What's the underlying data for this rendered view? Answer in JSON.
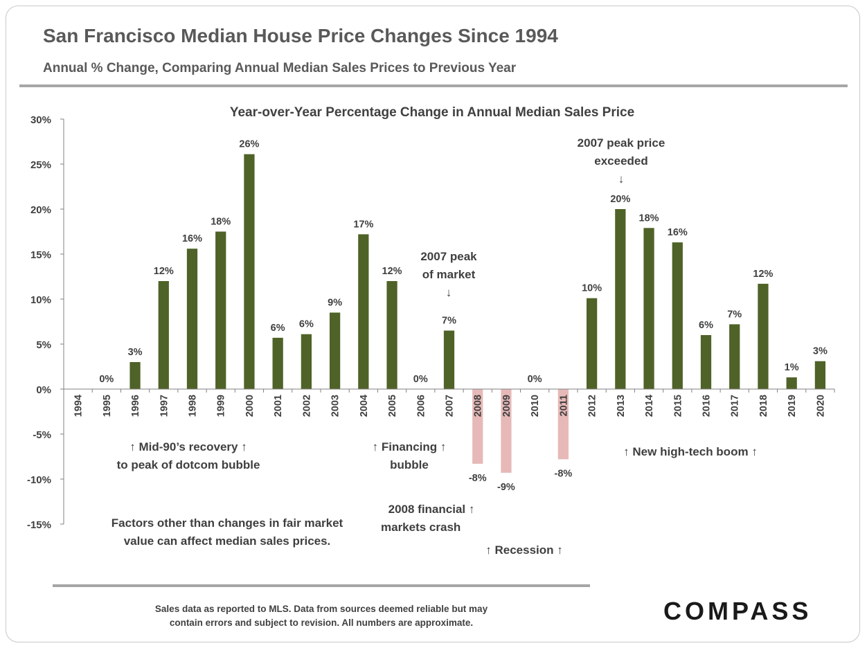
{
  "header": {
    "title": "San Francisco Median House Price Changes Since 1994",
    "subtitle": "Annual % Change, Comparing Annual Median Sales Prices to Previous Year"
  },
  "chart_data": {
    "type": "bar",
    "title": "Year-over-Year Percentage Change in Annual Median Sales Price",
    "xlabel": "",
    "ylabel": "",
    "ylim": [
      -15,
      30
    ],
    "y_ticks": [
      "30%",
      "25%",
      "20%",
      "15%",
      "10%",
      "5%",
      "0%",
      "-5%",
      "-10%",
      "-15%"
    ],
    "grid": false,
    "categories": [
      "1994",
      "1995",
      "1996",
      "1997",
      "1998",
      "1999",
      "2000",
      "2001",
      "2002",
      "2003",
      "2004",
      "2005",
      "2006",
      "2007",
      "2008",
      "2009",
      "2010",
      "2011",
      "2012",
      "2013",
      "2014",
      "2015",
      "2016",
      "2017",
      "2018",
      "2019",
      "2020"
    ],
    "values": [
      null,
      0,
      3.0,
      12.0,
      15.6,
      17.5,
      26.1,
      5.7,
      6.1,
      8.5,
      17.2,
      12.0,
      0,
      6.5,
      -8.3,
      -9.3,
      0,
      -7.8,
      10.1,
      20.0,
      17.9,
      16.3,
      6.0,
      7.2,
      11.7,
      1.3,
      3.1
    ],
    "data_labels": [
      "",
      "0%",
      "3%",
      "12%",
      "16%",
      "18%",
      "26%",
      "6%",
      "6%",
      "9%",
      "17%",
      "12%",
      "0%",
      "7%",
      "-8%",
      "-9%",
      "0%",
      "-8%",
      "10%",
      "20%",
      "18%",
      "16%",
      "6%",
      "7%",
      "12%",
      "1%",
      "3%"
    ],
    "colors": {
      "positive": "#4f6228",
      "negative": "#e6b9b8"
    }
  },
  "annotations": {
    "peak_market_line1": "2007 peak",
    "peak_market_line2": "of market",
    "peak_exceeded_line1": "2007 peak price",
    "peak_exceeded_line2": "exceeded",
    "down_arrow": "↓",
    "up_arrow": "↑",
    "mid90_line1": "Mid-90’s recovery",
    "mid90_line2": "to peak of dotcom bubble",
    "financing_line1": "Financing",
    "financing_line2": "bubble",
    "crash_line1": "2008 financial",
    "crash_line2": "markets crash",
    "recession": "Recession",
    "hightech": "New high-tech boom",
    "factors_line1": "Factors other than changes in fair market",
    "factors_line2": "value can affect median sales prices."
  },
  "footer": {
    "note_line1": "Sales data as reported to MLS. Data from sources deemed reliable but may",
    "note_line2": "contain errors and subject to revision. All numbers are approximate.",
    "logo": "COMPASS"
  }
}
